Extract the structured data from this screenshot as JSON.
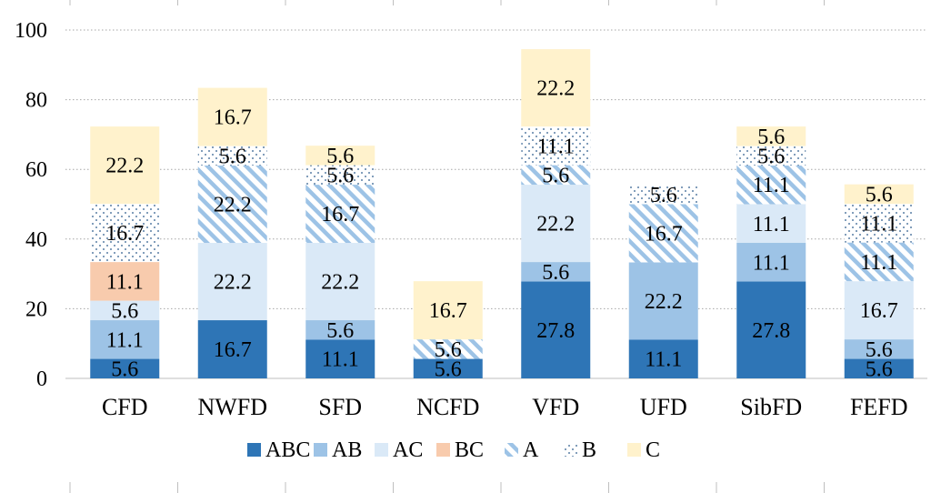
{
  "chart_data": {
    "type": "bar",
    "stacked": true,
    "title": "",
    "xlabel": "",
    "ylabel": "",
    "ylim": [
      0,
      100
    ],
    "yticks": [
      0,
      20,
      40,
      60,
      80,
      100
    ],
    "grid": true,
    "legend_position": "bottom",
    "categories": [
      "CFD",
      "NWFD",
      "SFD",
      "NCFD",
      "VFD",
      "UFD",
      "SibFD",
      "FEFD"
    ],
    "series": [
      {
        "name": "ABC",
        "values": [
          5.6,
          16.7,
          11.1,
          5.6,
          27.8,
          11.1,
          27.8,
          5.6
        ]
      },
      {
        "name": "AB",
        "values": [
          11.1,
          0,
          5.6,
          0,
          5.6,
          22.2,
          11.1,
          5.6
        ]
      },
      {
        "name": "AC",
        "values": [
          5.6,
          22.2,
          22.2,
          0,
          22.2,
          0,
          11.1,
          16.7
        ]
      },
      {
        "name": "BC",
        "values": [
          11.1,
          0,
          0,
          0,
          0,
          0,
          0,
          0
        ]
      },
      {
        "name": "A",
        "values": [
          0,
          22.2,
          16.7,
          5.6,
          5.6,
          16.7,
          11.1,
          11.1
        ]
      },
      {
        "name": "B",
        "values": [
          16.7,
          5.6,
          5.6,
          0,
          11.1,
          5.6,
          5.6,
          11.1
        ]
      },
      {
        "name": "C",
        "values": [
          22.2,
          16.7,
          5.6,
          16.7,
          22.2,
          0,
          5.6,
          5.6
        ]
      }
    ],
    "colors": {
      "ABC": "#2e75b6",
      "AB": "#9dc3e6",
      "AC": "#dae9f7",
      "BC": "#f8cbad",
      "A": "#9dc3e6",
      "B": "#5b7fa6",
      "C": "#fff2cc",
      "grid": "#a6a6a6",
      "axis": "#bfbfbf"
    },
    "patterns": {
      "A": "diagonal-hatch",
      "B": "dots"
    }
  }
}
